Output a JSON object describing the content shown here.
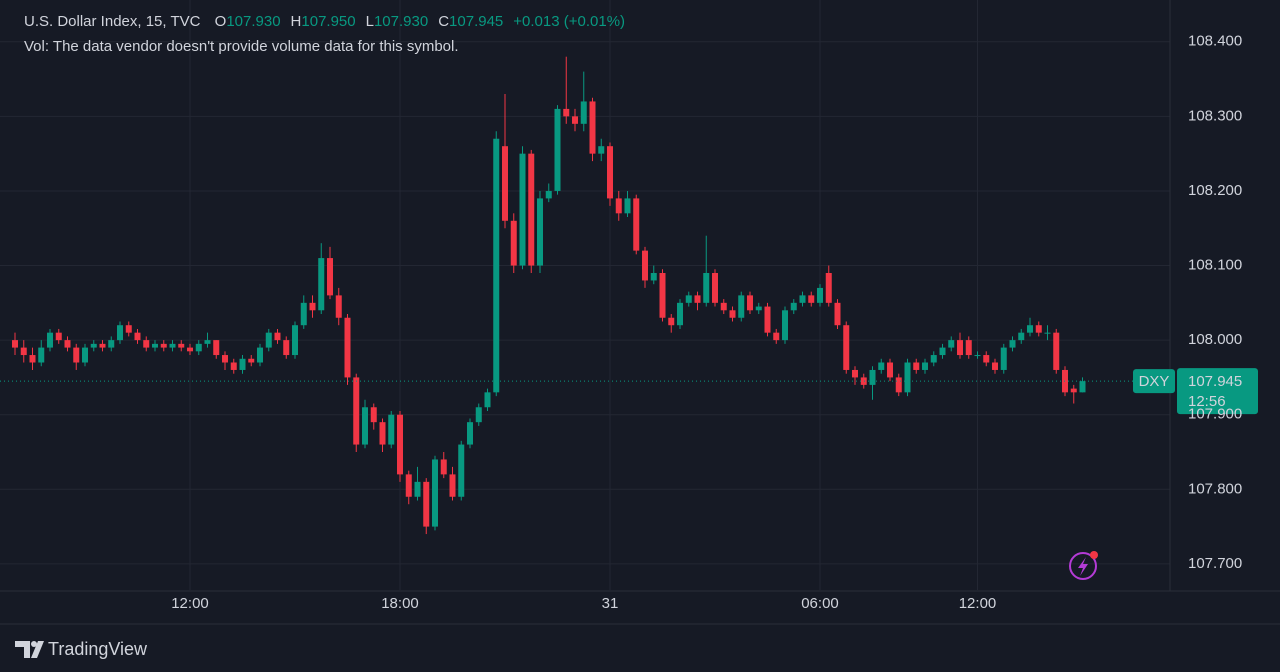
{
  "header": {
    "title": "U.S. Dollar Index, 15, TVC",
    "ohlc": [
      {
        "key": "O",
        "value": "107.930"
      },
      {
        "key": "H",
        "value": "107.950"
      },
      {
        "key": "L",
        "value": "107.930"
      },
      {
        "key": "C",
        "value": "107.945"
      }
    ],
    "change": "+0.013 (+0.01%)",
    "volume_note": "Vol: The data vendor doesn't provide volume data for this symbol."
  },
  "price_tag": {
    "symbol": "DXY",
    "price": {
      "value": 107.945,
      "label": "107.945"
    },
    "countdown": "12:56"
  },
  "branding": "TradingView",
  "chart_data": {
    "type": "candlestick",
    "up_color": "#089981",
    "down_color": "#f23645",
    "grid": true,
    "ylim": [
      107.665,
      108.456
    ],
    "yticks": [
      {
        "value": 107.7,
        "label": "107.700"
      },
      {
        "value": 107.8,
        "label": "107.800"
      },
      {
        "value": 107.9,
        "label": "107.900"
      },
      {
        "value": 108.0,
        "label": "108.000"
      },
      {
        "value": 108.1,
        "label": "108.100"
      },
      {
        "value": 108.2,
        "label": "108.200"
      },
      {
        "value": 108.3,
        "label": "108.300"
      },
      {
        "value": 108.4,
        "label": "108.400"
      }
    ],
    "categories": [
      null,
      null,
      null,
      null,
      null,
      null,
      null,
      null,
      null,
      null,
      null,
      null,
      null,
      null,
      null,
      null,
      null,
      null,
      null,
      null,
      "12:00",
      null,
      null,
      null,
      null,
      null,
      null,
      null,
      null,
      null,
      null,
      null,
      null,
      null,
      null,
      null,
      null,
      null,
      null,
      null,
      null,
      null,
      null,
      null,
      "18:00",
      null,
      null,
      null,
      null,
      null,
      null,
      null,
      null,
      null,
      null,
      null,
      null,
      null,
      null,
      null,
      null,
      null,
      null,
      null,
      null,
      null,
      null,
      null,
      "31",
      null,
      null,
      null,
      null,
      null,
      null,
      null,
      null,
      null,
      null,
      null,
      null,
      null,
      null,
      null,
      null,
      null,
      null,
      null,
      null,
      null,
      null,
      null,
      "06:00",
      null,
      null,
      null,
      null,
      null,
      null,
      null,
      null,
      null,
      null,
      null,
      null,
      null,
      null,
      null,
      null,
      null,
      "12:00",
      null,
      null,
      null,
      null,
      null,
      null,
      null,
      null,
      null,
      null,
      null,
      null
    ],
    "open": [
      108.0,
      107.99,
      107.98,
      107.97,
      107.99,
      108.01,
      108.0,
      107.99,
      107.97,
      107.99,
      107.995,
      107.99,
      108.0,
      108.02,
      108.01,
      108.0,
      107.99,
      107.995,
      107.99,
      107.995,
      107.99,
      107.985,
      107.995,
      108.0,
      107.98,
      107.97,
      107.96,
      107.975,
      107.97,
      107.99,
      108.01,
      108.0,
      107.98,
      108.02,
      108.05,
      108.04,
      108.11,
      108.06,
      108.03,
      107.95,
      107.86,
      107.91,
      107.89,
      107.86,
      107.9,
      107.82,
      107.79,
      107.81,
      107.75,
      107.84,
      107.82,
      107.79,
      107.86,
      107.89,
      107.91,
      107.93,
      108.26,
      108.16,
      108.1,
      108.25,
      108.1,
      108.19,
      108.2,
      108.31,
      108.3,
      108.29,
      108.32,
      108.25,
      108.26,
      108.19,
      108.17,
      108.19,
      108.12,
      108.08,
      108.09,
      108.03,
      108.02,
      108.05,
      108.06,
      108.05,
      108.09,
      108.05,
      108.04,
      108.03,
      108.06,
      108.04,
      108.045,
      108.01,
      108.0,
      108.04,
      108.05,
      108.06,
      108.05,
      108.09,
      108.05,
      108.02,
      107.96,
      107.95,
      107.94,
      107.96,
      107.97,
      107.95,
      107.93,
      107.97,
      107.96,
      107.97,
      107.98,
      107.99,
      108.0,
      108.0,
      107.98,
      107.98,
      107.97,
      107.96,
      107.99,
      108.0,
      108.01,
      108.02,
      108.01,
      108.01,
      107.96,
      107.935,
      107.93
    ],
    "high": [
      108.01,
      108.0,
      107.99,
      108.0,
      108.015,
      108.015,
      108.005,
      107.995,
      107.995,
      108.0,
      108.0,
      108.005,
      108.025,
      108.025,
      108.015,
      108.005,
      108.0,
      108.0,
      108.0,
      108.0,
      107.995,
      108.0,
      108.01,
      108.0,
      107.985,
      107.975,
      107.98,
      107.98,
      107.995,
      108.015,
      108.015,
      108.005,
      108.025,
      108.06,
      108.06,
      108.13,
      108.125,
      108.07,
      108.035,
      107.955,
      107.92,
      107.915,
      107.895,
      107.905,
      107.905,
      107.825,
      107.83,
      107.815,
      107.845,
      107.85,
      107.83,
      107.865,
      107.895,
      107.915,
      107.935,
      108.28,
      108.33,
      108.17,
      108.26,
      108.255,
      108.2,
      108.21,
      108.315,
      108.38,
      108.31,
      108.36,
      108.325,
      108.27,
      108.265,
      108.2,
      108.2,
      108.195,
      108.125,
      108.1,
      108.095,
      108.035,
      108.055,
      108.065,
      108.065,
      108.14,
      108.095,
      108.055,
      108.045,
      108.065,
      108.065,
      108.05,
      108.05,
      108.015,
      108.045,
      108.055,
      108.065,
      108.065,
      108.075,
      108.1,
      108.055,
      108.025,
      107.965,
      107.955,
      107.965,
      107.975,
      107.975,
      107.955,
      107.975,
      107.975,
      107.975,
      107.985,
      107.995,
      108.005,
      108.01,
      108.005,
      107.985,
      107.985,
      107.975,
      107.995,
      108.005,
      108.015,
      108.03,
      108.025,
      108.02,
      108.015,
      107.965,
      107.94,
      107.95
    ],
    "low": [
      107.98,
      107.97,
      107.96,
      107.965,
      107.985,
      107.995,
      107.985,
      107.96,
      107.965,
      107.985,
      107.985,
      107.985,
      107.995,
      108.005,
      107.995,
      107.985,
      107.985,
      107.985,
      107.985,
      107.985,
      107.98,
      107.98,
      107.99,
      107.975,
      107.96,
      107.955,
      107.955,
      107.965,
      107.965,
      107.985,
      107.995,
      107.975,
      107.975,
      108.015,
      108.03,
      108.035,
      108.055,
      108.02,
      107.94,
      107.85,
      107.855,
      107.88,
      107.85,
      107.855,
      107.81,
      107.78,
      107.785,
      107.74,
      107.745,
      107.815,
      107.785,
      107.785,
      107.855,
      107.885,
      107.905,
      107.925,
      108.15,
      108.09,
      108.095,
      108.09,
      108.09,
      108.185,
      108.195,
      108.29,
      108.28,
      108.28,
      108.24,
      108.24,
      108.18,
      108.16,
      108.165,
      108.115,
      108.07,
      108.075,
      108.025,
      108.01,
      108.015,
      108.045,
      108.04,
      108.045,
      108.045,
      108.035,
      108.025,
      108.025,
      108.035,
      108.035,
      108.005,
      107.995,
      107.995,
      108.035,
      108.045,
      108.045,
      108.045,
      108.045,
      108.015,
      107.955,
      107.94,
      107.935,
      107.92,
      107.955,
      107.945,
      107.925,
      107.925,
      107.955,
      107.955,
      107.965,
      107.975,
      107.985,
      107.975,
      107.975,
      107.975,
      107.965,
      107.955,
      107.955,
      107.985,
      107.995,
      108.005,
      108.005,
      108.0,
      107.955,
      107.925,
      107.915,
      107.93
    ],
    "close": [
      107.99,
      107.98,
      107.97,
      107.99,
      108.01,
      108.0,
      107.99,
      107.97,
      107.99,
      107.995,
      107.99,
      108.0,
      108.02,
      108.01,
      108.0,
      107.99,
      107.995,
      107.99,
      107.995,
      107.99,
      107.985,
      107.995,
      108.0,
      107.98,
      107.97,
      107.96,
      107.975,
      107.97,
      107.99,
      108.01,
      108.0,
      107.98,
      108.02,
      108.05,
      108.04,
      108.11,
      108.06,
      108.03,
      107.95,
      107.86,
      107.91,
      107.89,
      107.86,
      107.9,
      107.82,
      107.79,
      107.81,
      107.75,
      107.84,
      107.82,
      107.79,
      107.86,
      107.89,
      107.91,
      107.93,
      108.27,
      108.16,
      108.1,
      108.25,
      108.1,
      108.19,
      108.2,
      108.31,
      108.3,
      108.29,
      108.32,
      108.25,
      108.26,
      108.19,
      108.17,
      108.19,
      108.12,
      108.08,
      108.09,
      108.03,
      108.02,
      108.05,
      108.06,
      108.05,
      108.09,
      108.05,
      108.04,
      108.03,
      108.06,
      108.04,
      108.045,
      108.01,
      108.0,
      108.04,
      108.05,
      108.06,
      108.05,
      108.07,
      108.05,
      108.02,
      107.96,
      107.95,
      107.94,
      107.96,
      107.97,
      107.95,
      107.93,
      107.97,
      107.96,
      107.97,
      107.98,
      107.99,
      108.0,
      107.98,
      107.98,
      107.98,
      107.97,
      107.96,
      107.99,
      108.0,
      108.01,
      108.02,
      108.01,
      108.01,
      107.96,
      107.93,
      107.93,
      107.945
    ]
  }
}
